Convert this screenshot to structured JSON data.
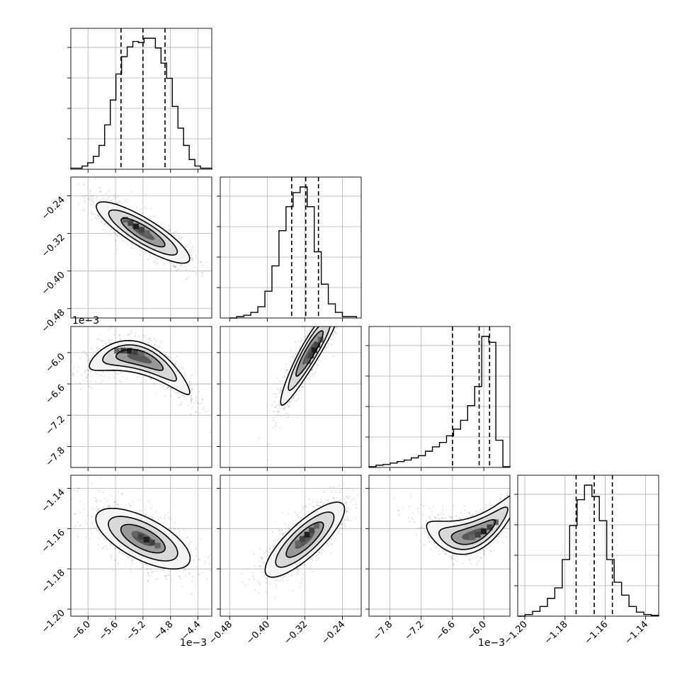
{
  "chart_data": {
    "type": "corner",
    "num_parameters": 4,
    "parameters": [
      {
        "index": 0,
        "range": [
          -6.25,
          -4.2
        ],
        "ticks": [
          -6.0,
          -5.6,
          -5.2,
          -4.8,
          -4.4
        ],
        "tick_labels": [
          "−6.0",
          "−5.6",
          "−5.2",
          "−4.8",
          "−4.4"
        ],
        "offset_label": "1e−3",
        "quantiles": [
          -5.52,
          -5.2,
          -4.88
        ]
      },
      {
        "index": 1,
        "range": [
          -0.5,
          -0.2
        ],
        "ticks": [
          -0.48,
          -0.4,
          -0.32,
          -0.24
        ],
        "tick_labels": [
          "−0.48",
          "−0.40",
          "−0.32",
          "−0.24"
        ],
        "offset_label": "",
        "quantiles": [
          -0.348,
          -0.318,
          -0.291
        ]
      },
      {
        "index": 2,
        "range": [
          -8.2,
          -5.5
        ],
        "ticks": [
          -7.8,
          -7.2,
          -6.6,
          -6.0
        ],
        "tick_labels": [
          "−7.8",
          "−7.2",
          "−6.6",
          "−6.0"
        ],
        "offset_label": "1e−3",
        "quantiles": [
          -6.6,
          -6.09,
          -5.89
        ]
      },
      {
        "index": 3,
        "range": [
          -1.2035,
          -1.1335
        ],
        "ticks": [
          -1.2,
          -1.18,
          -1.16,
          -1.14
        ],
        "tick_labels": [
          "−1.20",
          "−1.18",
          "−1.16",
          "−1.14"
        ],
        "offset_label": "",
        "quantiles": [
          -1.1745,
          -1.1655,
          -1.1565
        ]
      }
    ],
    "histograms": [
      {
        "param": 0,
        "bins": [
          -6.25,
          -4.2
        ],
        "counts": [
          1,
          1,
          3,
          6,
          12,
          22,
          41,
          64,
          88,
          104,
          113,
          118,
          117,
          121,
          121,
          112,
          98,
          84,
          58,
          38,
          22,
          9,
          3,
          1,
          1
        ]
      },
      {
        "param": 1,
        "bins": [
          -0.48,
          -0.21
        ],
        "counts": [
          0,
          1,
          2,
          4,
          8,
          19,
          37,
          62,
          79,
          89,
          93,
          79,
          47,
          24,
          10,
          4,
          1,
          1
        ]
      },
      {
        "param": 2,
        "bins": [
          -8.2,
          -5.5
        ],
        "counts": [
          1,
          3,
          4,
          6,
          8,
          10,
          13,
          16,
          22,
          28,
          34,
          43,
          52,
          64,
          84,
          110,
          178,
          170,
          37,
          1
        ]
      },
      {
        "param": 3,
        "bins": [
          -1.2035,
          -1.1335
        ],
        "counts": [
          0,
          2,
          6,
          12,
          22,
          35,
          70,
          112,
          144,
          162,
          148,
          118,
          70,
          42,
          26,
          12,
          5,
          2,
          1
        ]
      }
    ],
    "pairs": [
      {
        "x": 0,
        "y": 1,
        "center": [
          -5.2,
          -0.318
        ],
        "density_peak": [
          -5.3,
          -0.305
        ]
      },
      {
        "x": 0,
        "y": 2,
        "center": [
          -5.25,
          -6.1
        ],
        "density_peak": [
          -5.4,
          -5.95
        ]
      },
      {
        "x": 1,
        "y": 2,
        "center": [
          -0.31,
          -6.0
        ],
        "density_peak": [
          -0.3,
          -5.95
        ]
      },
      {
        "x": 0,
        "y": 3,
        "center": [
          -5.2,
          -1.165
        ],
        "density_peak": [
          -5.15,
          -1.1655
        ]
      },
      {
        "x": 1,
        "y": 3,
        "center": [
          -0.32,
          -1.1655
        ],
        "density_peak": [
          -0.315,
          -1.163
        ]
      },
      {
        "x": 2,
        "y": 3,
        "center": [
          -6.2,
          -1.163
        ],
        "density_peak": [
          -6.0,
          -1.162
        ]
      }
    ],
    "grid": true,
    "colors": {
      "line": "#000000",
      "grid": "#b0b0b0",
      "density": "#000000"
    }
  }
}
